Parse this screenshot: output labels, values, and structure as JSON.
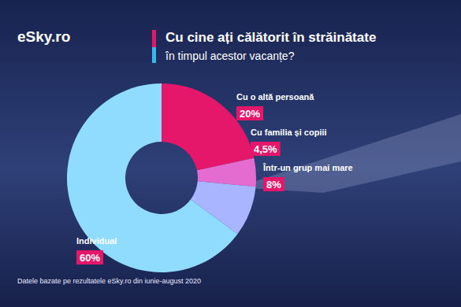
{
  "chart_data": {
    "type": "pie",
    "title": "Cu cine ați călătorit în străinătate",
    "subtitle": "în timpul acestor vacanțe?",
    "logo": "eSky.ro",
    "source": "Datele bazate pe rezultatele eSky.ro din iunie-august 2020",
    "categories": [
      "Cu o altă persoană",
      "Cu familia și copiii",
      "Într-un grup mai mare",
      "Individual"
    ],
    "values": [
      20,
      4.5,
      8,
      60
    ],
    "value_labels": [
      "20%",
      "4,5%",
      "8%",
      "60%"
    ],
    "colors": [
      "#e5176b",
      "#e46bd0",
      "#a9b6ff",
      "#8fdcff"
    ],
    "data_labels": true
  }
}
